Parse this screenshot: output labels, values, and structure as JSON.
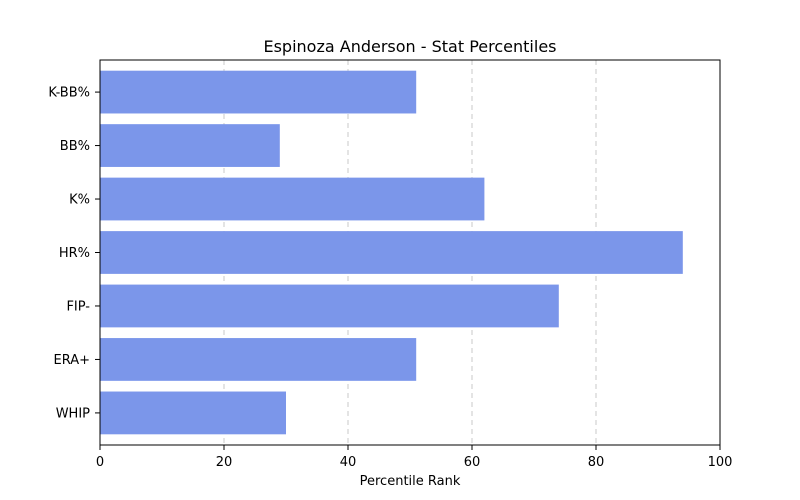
{
  "chart_data": {
    "type": "bar",
    "orientation": "horizontal",
    "title": "Espinoza Anderson - Stat Percentiles",
    "xlabel": "Percentile Rank",
    "ylabel": "",
    "categories": [
      "K-BB%",
      "BB%",
      "K%",
      "HR%",
      "FIP-",
      "ERA+",
      "WHIP"
    ],
    "values": [
      51,
      29,
      62,
      94,
      74,
      51,
      30
    ],
    "xlim": [
      0,
      100
    ],
    "xticks": [
      0,
      20,
      40,
      60,
      80,
      100
    ],
    "grid": "x-dashed",
    "bar_color": "#7b96ea"
  }
}
